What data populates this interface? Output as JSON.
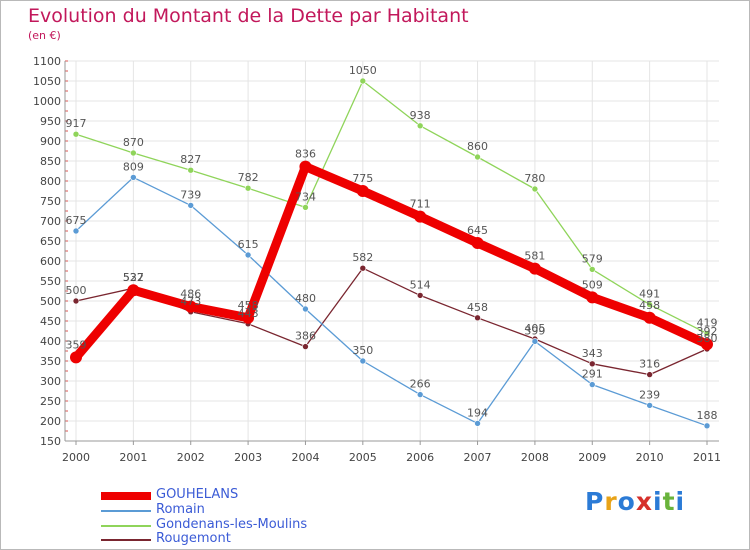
{
  "title": "Evolution du Montant de la Dette par Habitant",
  "subtitle": "(en €)",
  "brand": {
    "letters": [
      "P",
      "r",
      "o",
      "x",
      "i",
      "t",
      "i"
    ],
    "colors": [
      "#2b7bd6",
      "#e8a317",
      "#2b7bd6",
      "#d6302b",
      "#2b7bd6",
      "#69b33b",
      "#2b7bd6"
    ]
  },
  "chart_data": {
    "type": "line",
    "x": [
      "2000",
      "2001",
      "2002",
      "2003",
      "2004",
      "2005",
      "2006",
      "2007",
      "2008",
      "2009",
      "2010",
      "2011"
    ],
    "y_ticks": [
      "150",
      "200",
      "250",
      "300",
      "350",
      "400",
      "450",
      "500",
      "550",
      "600",
      "650",
      "700",
      "750",
      "800",
      "850",
      "900",
      "950",
      "1000",
      "1050",
      "1100"
    ],
    "ylim": [
      150,
      1100
    ],
    "grid": true,
    "legend_position": "bottom-left",
    "series": [
      {
        "name": "Rougemont",
        "color": "#7a2630",
        "values": [
          500,
          532,
          473,
          443,
          386,
          582,
          514,
          458,
          405,
          343,
          316,
          380
        ],
        "labels": [
          "500",
          "532",
          "473",
          "443",
          "386",
          "582",
          "514",
          "458",
          "405",
          "343",
          "316",
          "380"
        ]
      },
      {
        "name": "Romain",
        "color": "#5b9bd5",
        "values": [
          675,
          809,
          739,
          615,
          480,
          350,
          266,
          194,
          399,
          291,
          239,
          188
        ],
        "labels": [
          "675",
          "809",
          "739",
          "615",
          "480",
          "350",
          "266",
          "194",
          "399",
          "291",
          "239",
          "188"
        ]
      },
      {
        "name": "Gondenans-les-Moulins",
        "color": "#8fd45a",
        "values": [
          917,
          870,
          827,
          782,
          734,
          1050,
          938,
          860,
          780,
          579,
          491,
          419
        ],
        "labels": [
          "917",
          "870",
          "827",
          "782",
          "734",
          "1050",
          "938",
          "860",
          "780",
          "579",
          "491",
          "419"
        ]
      },
      {
        "name": "GOUHELANS",
        "color": "#ee0000",
        "values": [
          359,
          527,
          486,
          458,
          836,
          775,
          711,
          645,
          581,
          509,
          458,
          392
        ],
        "labels": [
          "359",
          "527",
          "486",
          "458",
          "836",
          "775",
          "711",
          "645",
          "581",
          "509",
          "458",
          "392"
        ]
      }
    ],
    "legend": [
      {
        "name": "GOUHELANS",
        "color": "#ee0000"
      },
      {
        "name": "Romain",
        "color": "#5b9bd5"
      },
      {
        "name": "Gondenans-les-Moulins",
        "color": "#8fd45a"
      },
      {
        "name": "Rougemont",
        "color": "#7a2630"
      }
    ]
  }
}
